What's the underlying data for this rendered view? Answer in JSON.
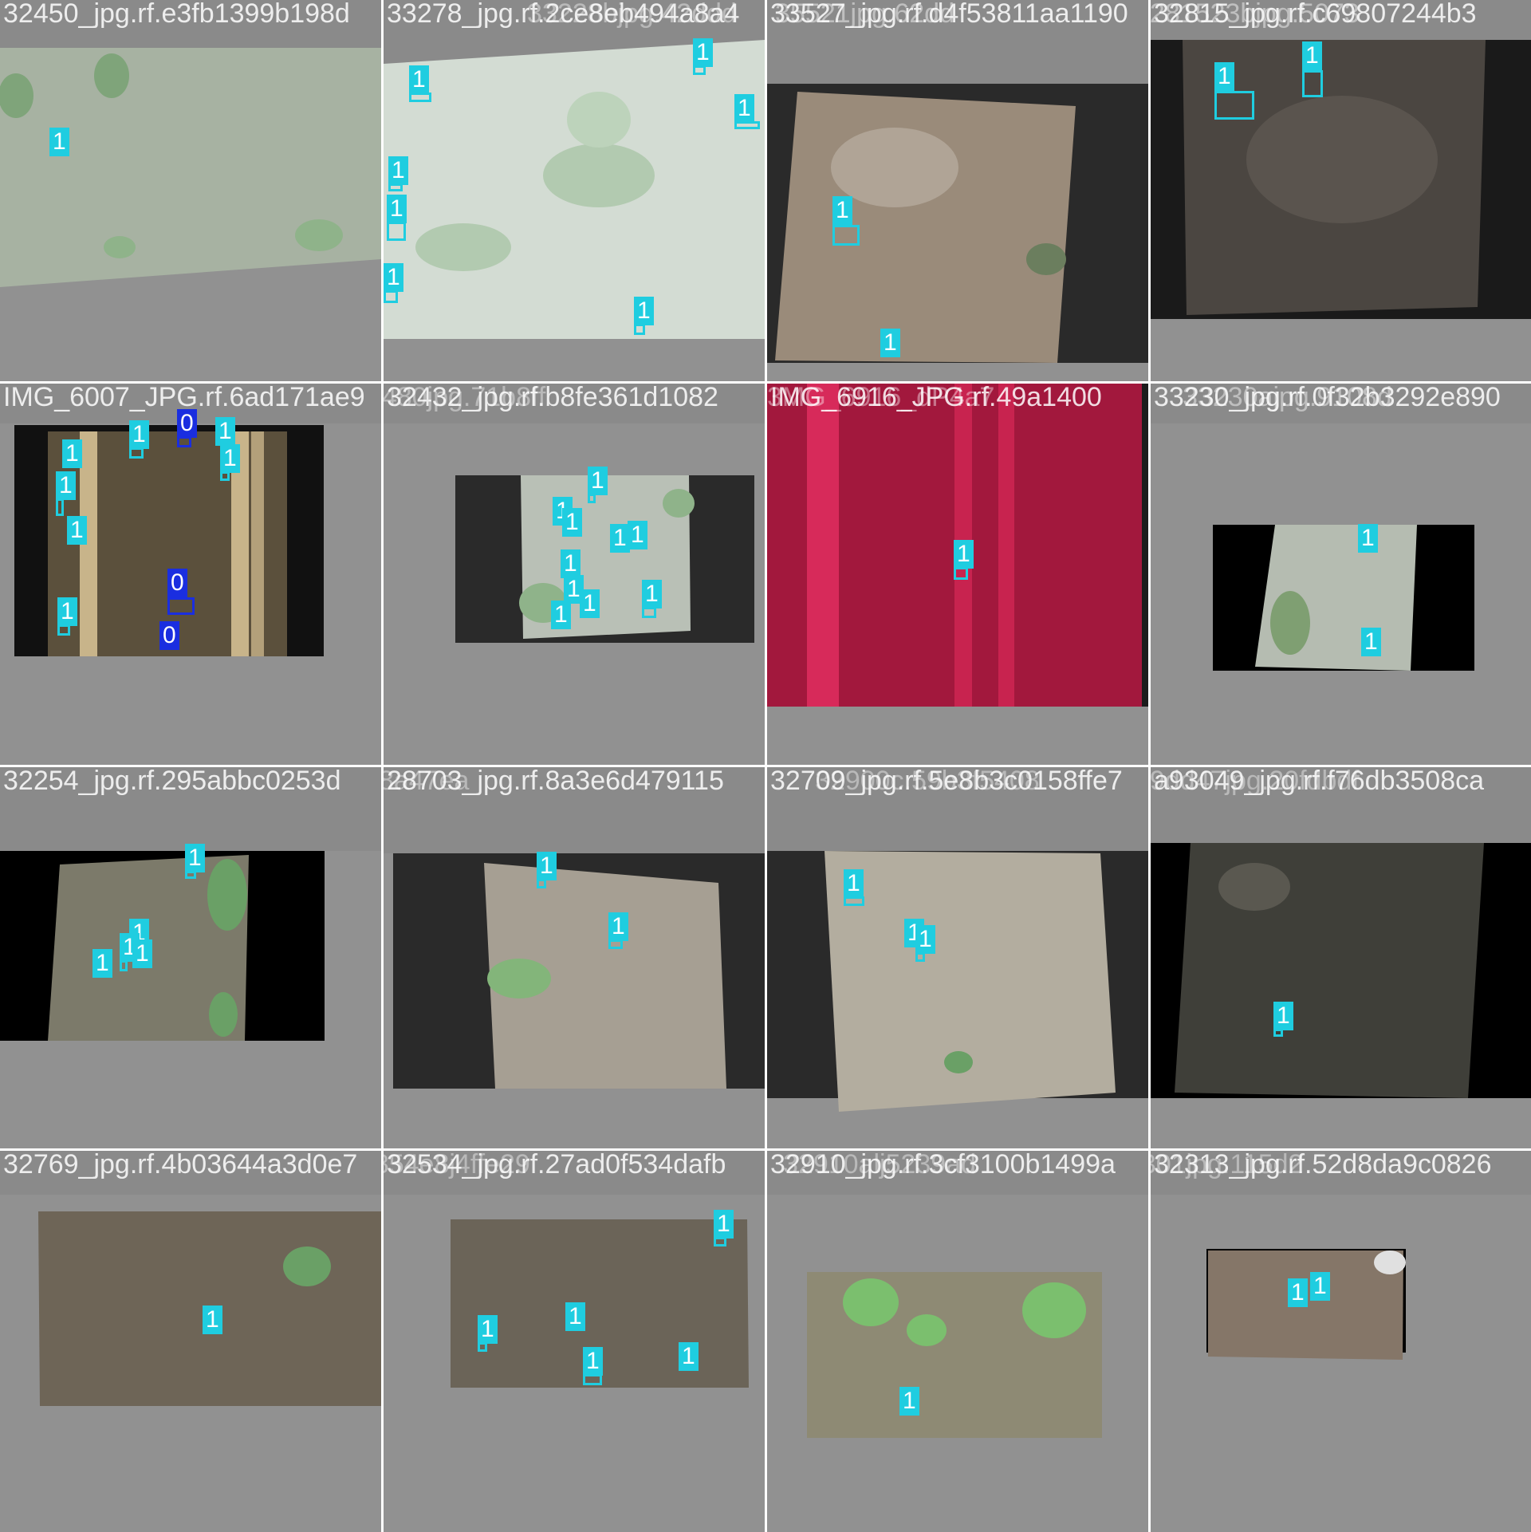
{
  "mosaic": {
    "colors": {
      "class_1": "#1fcde0",
      "class_0": "#1a2ee0",
      "grid_gray": "#919191",
      "dark_pad": "#2a2a2a"
    },
    "tiles": [
      {
        "title": "32450_jpg.rf.e3fb1399b198d",
        "title2": "",
        "labels": [
          "1"
        ],
        "pad": "dark",
        "photo_color": "#a7b2a2"
      },
      {
        "title": "33278_jpg.rf.2ce8eb494a8a4",
        "title2": "33228bjpg.42ddd",
        "labels": [
          "1",
          "1",
          "1",
          "1",
          "1",
          "1",
          "1"
        ],
        "pad": "gray",
        "photo_color": "#d3dcd3"
      },
      {
        "title": "33527_jpg.rf.d4f53811aa1190",
        "title2": "35521jpg.62dd",
        "labels": [
          "1",
          "1"
        ],
        "pad": "dark",
        "photo_color": "#9a8b7a"
      },
      {
        "title": "32815_jpg.rf.c69807244b3",
        "title2": "2281523bjpg.5073",
        "labels": [
          "1",
          "1"
        ],
        "pad": "gray",
        "photo_color": "#4b4641"
      },
      {
        "title": "IMG_6007_JPG.rf.6ad171ae9",
        "title2": "",
        "labels": [
          "1",
          "0",
          "1",
          "1",
          "1",
          "1",
          "1",
          "1",
          "0",
          "0"
        ],
        "pad": "dark",
        "photo_color": "#5b503c"
      },
      {
        "title": "32432_jpg.rf.b8fe361d1082",
        "title2": "37480jpg.71b8ff",
        "labels": [
          "1",
          "1",
          "1",
          "1",
          "1",
          "1",
          "1",
          "1",
          "1",
          "1"
        ],
        "pad": "gray",
        "photo_color": "#b9c0b6"
      },
      {
        "title": "IMG_6916_JPG.rf.49a1400",
        "title2": "3MG_6916_dP4a7",
        "labels": [
          "1"
        ],
        "pad": "dark",
        "photo_color": "#a2183d"
      },
      {
        "title": "33230_jpg.rf.0f32b3292e890",
        "title2": "33230ajpg.9108d",
        "labels": [
          "1",
          "1"
        ],
        "pad": "gray",
        "photo_color": "#b5bcb1"
      },
      {
        "title": "32254_jpg.rf.295abbc0253d",
        "title2": "",
        "labels": [
          "1",
          "1",
          "1",
          "1",
          "1"
        ],
        "pad": "dark",
        "photo_color": "#7c7a6a"
      },
      {
        "title": "28703_jpg.rf.8a3e6d479115",
        "title2": "2ef0f5f8a47ea",
        "labels": [
          "1",
          "1"
        ],
        "pad": "dark",
        "photo_color": "#a69f93"
      },
      {
        "title": "32709_jpg.rf.5e8b3c0158ffe7",
        "title2": "32900c.59b3f5408",
        "labels": [
          "1",
          "1",
          "1"
        ],
        "pad": "dark",
        "photo_color": "#b3ad9f"
      },
      {
        "title": "a93049_jpg.rf.f76db3508ca",
        "title2": "a9dd47jpg.20fdbdf",
        "labels": [
          "1"
        ],
        "pad": "dark",
        "photo_color": "#3f3f39"
      },
      {
        "title": "32769_jpg.rf.4b03644a3d0e7",
        "title2": "",
        "labels": [
          "1"
        ],
        "pad": "gray",
        "photo_color": "#6e6557"
      },
      {
        "title": "32534_jpg.rf.27ad0f534dafb",
        "title2": "73854e8j4ffe29",
        "labels": [
          "1",
          "1",
          "1",
          "1",
          "1"
        ],
        "pad": "gray",
        "photo_color": "#6b6458"
      },
      {
        "title": "32910_jpg.rf.3cf3100b1499a",
        "title2": "32910alj5239ad",
        "labels": [
          "1"
        ],
        "pad": "gray",
        "photo_color": "#8e8a74"
      },
      {
        "title": "32313_jpg.rf.52d8da9c0826",
        "title2": "32301jpg.115d2",
        "labels": [
          "1",
          "1"
        ],
        "pad": "gray",
        "photo_color": "#857668"
      }
    ]
  }
}
